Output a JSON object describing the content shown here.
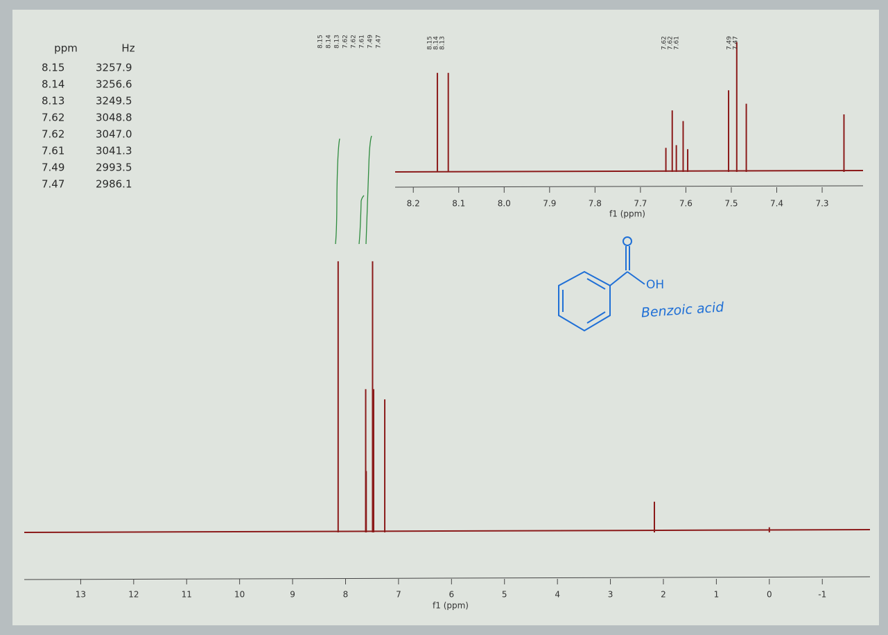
{
  "peak_table": {
    "columns": [
      "ppm",
      "Hz"
    ],
    "rows": [
      [
        "8.15",
        "3257.9"
      ],
      [
        "8.14",
        "3256.6"
      ],
      [
        "8.13",
        "3249.5"
      ],
      [
        "7.62",
        "3048.8"
      ],
      [
        "7.62",
        "3047.0"
      ],
      [
        "7.61",
        "3041.3"
      ],
      [
        "7.49",
        "2993.5"
      ],
      [
        "7.47",
        "2986.1"
      ]
    ]
  },
  "chart_data": [
    {
      "type": "stick",
      "x_label": "f1 (ppm)",
      "color": "#8b1a1a",
      "x": [
        8.14,
        7.62,
        7.61,
        7.49,
        7.47,
        7.26,
        2.17,
        0.0
      ],
      "values": [
        53,
        28,
        12,
        53,
        28,
        26,
        6,
        1
      ],
      "xlim": [
        14.0,
        -1.9
      ],
      "ylim": [
        0,
        100
      ],
      "xticks": [
        13,
        12,
        11,
        10,
        9,
        8,
        7,
        6,
        5,
        4,
        3,
        2,
        1,
        0,
        -1
      ],
      "peak_labels": [
        "8.15",
        "8.14",
        "8.13",
        "7.62",
        "7.62",
        "7.61",
        "7.49",
        "7.47"
      ]
    },
    {
      "type": "stick",
      "x_label": "f1 (ppm)",
      "color": "#8b1a1a",
      "x": [
        8.147,
        8.123,
        7.644,
        7.63,
        7.621,
        7.606,
        7.596,
        7.506,
        7.488,
        7.467,
        7.252
      ],
      "values": [
        74,
        74,
        18,
        46,
        20,
        38,
        17,
        61,
        97,
        51,
        43
      ],
      "xlim": [
        8.24,
        7.21
      ],
      "ylim": [
        0,
        100
      ],
      "xticks": [
        8.2,
        8.1,
        {
          "value": 8,
          "label": "8.0"
        },
        7.9,
        7.8,
        7.7,
        7.6,
        7.5,
        7.4,
        7.3
      ],
      "peak_labels": [
        "8.15",
        "8.14",
        "8.13",
        "7.62",
        "7.62",
        "7.61",
        "7.49",
        "7.47"
      ]
    }
  ],
  "structure": {
    "name": "Benzoic acid",
    "group": "OH"
  }
}
